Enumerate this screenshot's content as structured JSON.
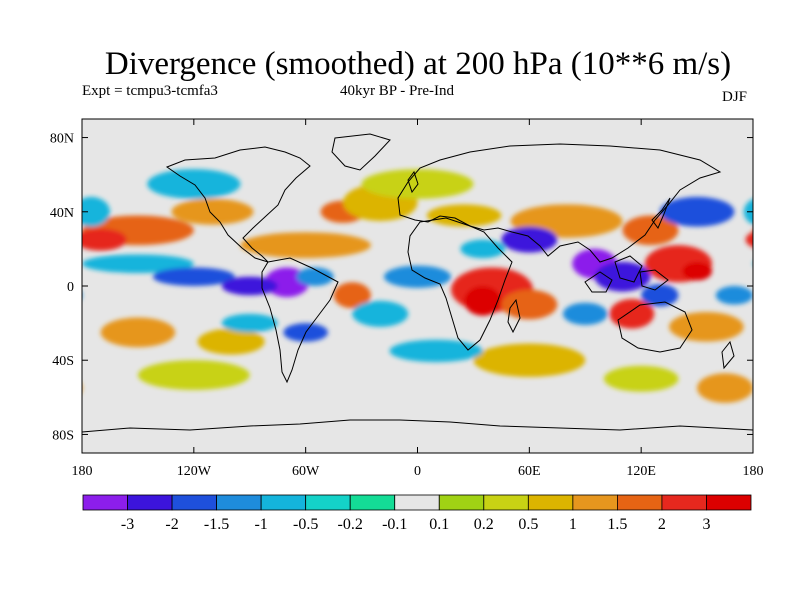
{
  "title": "Divergence (smoothed) at 200 hPa (10**6 m/s)",
  "subtitle_left": "Expt = tcmpu3-tcmfa3",
  "subtitle_center": "40kyr BP - Pre-Ind",
  "subtitle_right": "DJF",
  "colors": {
    "background_field": "#e6e6e6",
    "levels": [
      "#8c1eeb",
      "#3c14dc",
      "#1e50dc",
      "#1e8cdc",
      "#14b4dc",
      "#14d2c8",
      "#14dc96",
      "#e6e6e6",
      "#a0d214",
      "#c8d214",
      "#dcb400",
      "#e6961e",
      "#e66414",
      "#e6281e",
      "#dc0000"
    ]
  },
  "chart_data": {
    "type": "heatmap",
    "projection": "cylindrical-equidistant",
    "xlim": [
      -180,
      180
    ],
    "ylim": [
      -90,
      90
    ],
    "x_ticks": [
      {
        "value": -180,
        "label": "180"
      },
      {
        "value": -120,
        "label": "120W"
      },
      {
        "value": -60,
        "label": "60W"
      },
      {
        "value": 0,
        "label": "0"
      },
      {
        "value": 60,
        "label": "60E"
      },
      {
        "value": 120,
        "label": "120E"
      },
      {
        "value": 180,
        "label": "180"
      }
    ],
    "y_ticks": [
      {
        "value": 80,
        "label": "80N"
      },
      {
        "value": 40,
        "label": "40N"
      },
      {
        "value": 0,
        "label": "0"
      },
      {
        "value": -40,
        "label": "40S"
      },
      {
        "value": -80,
        "label": "80S"
      }
    ],
    "colorbar_labels": [
      "-3",
      "-2",
      "-1.5",
      "-1",
      "-0.5",
      "-0.2",
      "-0.1",
      "0.1",
      "0.2",
      "0.5",
      "1",
      "1.5",
      "2",
      "3"
    ],
    "blobs": [
      {
        "lon": -150,
        "lat": 30,
        "rx": 30,
        "ry": 8,
        "level": 12
      },
      {
        "lon": -170,
        "lat": 25,
        "rx": 14,
        "ry": 6,
        "level": 13
      },
      {
        "lon": -110,
        "lat": 40,
        "rx": 22,
        "ry": 7,
        "level": 11
      },
      {
        "lon": -60,
        "lat": 22,
        "rx": 35,
        "ry": 7,
        "level": 11
      },
      {
        "lon": -40,
        "lat": 40,
        "rx": 12,
        "ry": 6,
        "level": 12
      },
      {
        "lon": -20,
        "lat": 45,
        "rx": 20,
        "ry": 10,
        "level": 10
      },
      {
        "lon": 0,
        "lat": 55,
        "rx": 30,
        "ry": 8,
        "level": 9
      },
      {
        "lon": 25,
        "lat": 38,
        "rx": 20,
        "ry": 6,
        "level": 10
      },
      {
        "lon": 80,
        "lat": 35,
        "rx": 30,
        "ry": 9,
        "level": 11
      },
      {
        "lon": 125,
        "lat": 30,
        "rx": 15,
        "ry": 8,
        "level": 12
      },
      {
        "lon": 140,
        "lat": 12,
        "rx": 18,
        "ry": 10,
        "level": 13
      },
      {
        "lon": 150,
        "lat": 8,
        "rx": 8,
        "ry": 5,
        "level": 14
      },
      {
        "lon": 40,
        "lat": -2,
        "rx": 22,
        "ry": 12,
        "level": 13
      },
      {
        "lon": 35,
        "lat": -8,
        "rx": 10,
        "ry": 8,
        "level": 14
      },
      {
        "lon": 60,
        "lat": -10,
        "rx": 15,
        "ry": 8,
        "level": 12
      },
      {
        "lon": 115,
        "lat": -15,
        "rx": 12,
        "ry": 8,
        "level": 13
      },
      {
        "lon": 155,
        "lat": -22,
        "rx": 20,
        "ry": 8,
        "level": 11
      },
      {
        "lon": -35,
        "lat": -5,
        "rx": 10,
        "ry": 7,
        "level": 12
      },
      {
        "lon": -150,
        "lat": -25,
        "rx": 20,
        "ry": 8,
        "level": 11
      },
      {
        "lon": -100,
        "lat": -30,
        "rx": 18,
        "ry": 7,
        "level": 10
      },
      {
        "lon": -120,
        "lat": -48,
        "rx": 30,
        "ry": 8,
        "level": 9
      },
      {
        "lon": 60,
        "lat": -40,
        "rx": 30,
        "ry": 9,
        "level": 10
      },
      {
        "lon": 120,
        "lat": -50,
        "rx": 20,
        "ry": 7,
        "level": 9
      },
      {
        "lon": 165,
        "lat": -55,
        "rx": 15,
        "ry": 8,
        "level": 11
      },
      {
        "lon": -150,
        "lat": 12,
        "rx": 30,
        "ry": 5,
        "level": 4
      },
      {
        "lon": -120,
        "lat": 5,
        "rx": 22,
        "ry": 5,
        "level": 2
      },
      {
        "lon": -70,
        "lat": 2,
        "rx": 12,
        "ry": 8,
        "level": 0
      },
      {
        "lon": -90,
        "lat": 0,
        "rx": 15,
        "ry": 5,
        "level": 1
      },
      {
        "lon": -120,
        "lat": 55,
        "rx": 25,
        "ry": 8,
        "level": 4
      },
      {
        "lon": -55,
        "lat": 5,
        "rx": 10,
        "ry": 5,
        "level": 3
      },
      {
        "lon": 60,
        "lat": 25,
        "rx": 15,
        "ry": 7,
        "level": 1
      },
      {
        "lon": 150,
        "lat": 40,
        "rx": 20,
        "ry": 8,
        "level": 2
      },
      {
        "lon": 95,
        "lat": 12,
        "rx": 12,
        "ry": 8,
        "level": 0
      },
      {
        "lon": 110,
        "lat": 5,
        "rx": 15,
        "ry": 8,
        "level": 1
      },
      {
        "lon": 130,
        "lat": -5,
        "rx": 10,
        "ry": 6,
        "level": 2
      },
      {
        "lon": 35,
        "lat": 20,
        "rx": 12,
        "ry": 5,
        "level": 4
      },
      {
        "lon": 0,
        "lat": 5,
        "rx": 18,
        "ry": 6,
        "level": 3
      },
      {
        "lon": -20,
        "lat": -15,
        "rx": 15,
        "ry": 7,
        "level": 4
      },
      {
        "lon": 10,
        "lat": -35,
        "rx": 25,
        "ry": 6,
        "level": 4
      },
      {
        "lon": 90,
        "lat": -15,
        "rx": 12,
        "ry": 6,
        "level": 3
      },
      {
        "lon": -60,
        "lat": -25,
        "rx": 12,
        "ry": 5,
        "level": 2
      },
      {
        "lon": -90,
        "lat": -20,
        "rx": 15,
        "ry": 5,
        "level": 4
      },
      {
        "lon": 170,
        "lat": -5,
        "rx": 10,
        "ry": 5,
        "level": 3
      },
      {
        "lon": -175,
        "lat": 40,
        "rx": 10,
        "ry": 8,
        "level": 4
      }
    ]
  }
}
